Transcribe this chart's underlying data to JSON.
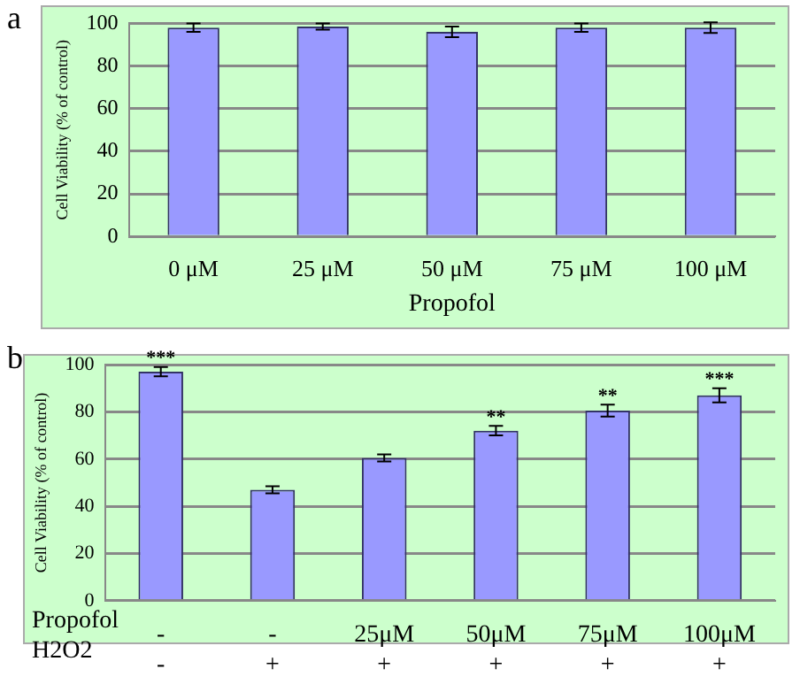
{
  "chart_data": [
    {
      "type": "bar",
      "title": "a",
      "xlabel": "Propofol",
      "ylabel": "Cell Viability (% of control)",
      "categories": [
        "0 μM",
        "25 μM",
        "50 μM",
        "75 μM",
        "100 μM"
      ],
      "values": [
        98,
        98.5,
        96,
        98,
        98
      ],
      "errors": [
        2,
        1.5,
        2.5,
        2,
        2.5
      ],
      "color": "#9999ff",
      "ylim": [
        0,
        100
      ],
      "yticks": [
        0,
        20,
        40,
        60,
        80,
        100
      ],
      "grid": "y",
      "legend": false
    },
    {
      "type": "bar",
      "title": "b",
      "xlabel": "Propofol\nH2O2",
      "ylabel": "Cell Viability (% of control)",
      "categories": [
        "-\n-",
        "-\n+",
        "25μM\n+",
        "50μM\n+",
        "75μM\n+",
        "100μM\n+"
      ],
      "values": [
        97,
        47,
        60.5,
        72,
        80.5,
        87
      ],
      "errors": [
        2,
        1.5,
        1.5,
        2,
        2.5,
        3
      ],
      "color": "#9999ff",
      "ylim": [
        0,
        100
      ],
      "yticks": [
        0,
        20,
        40,
        60,
        80,
        100
      ],
      "grid": "y",
      "legend": false,
      "annotations": [
        {
          "text": "***",
          "x": "-\n-",
          "y": 99
        },
        {
          "text": "**",
          "x": "50μM\n+",
          "y": 74
        },
        {
          "text": "**",
          "x": "75μM\n+",
          "y": 83
        },
        {
          "text": "***",
          "x": "100μM\n+",
          "y": 90
        }
      ]
    }
  ]
}
